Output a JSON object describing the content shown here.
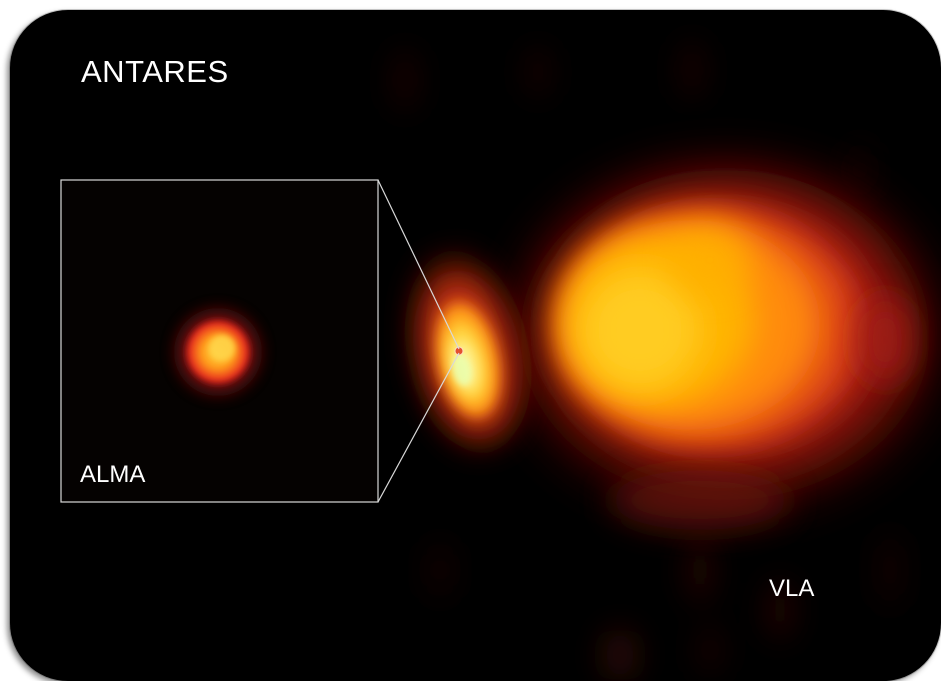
{
  "image": {
    "title": "ANTARES",
    "inset_label": "ALMA",
    "main_label": "VLA",
    "colors": {
      "background": "#000000",
      "hot_core": "#fff59a",
      "warm": "#ffb400",
      "outer_glow": "#b81d1d",
      "inset_border": "#d9d9d9"
    }
  }
}
